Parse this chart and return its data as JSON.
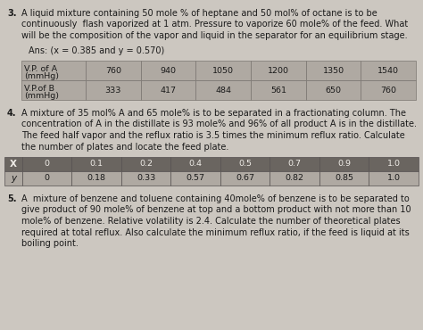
{
  "background_color": "#ccc7c0",
  "text_color": "#1a1a1a",
  "q3_num": "3.",
  "q3_lines": [
    "A liquid mixture containing 50 mole % of heptane and 50 mol% of octane is to be",
    "continuously  flash vaporized at 1 atm. Pressure to vaporize 60 mole% of the feed. What",
    "will be the composition of the vapor and liquid in the separator for an equilibrium stage."
  ],
  "q3_ans": "Ans: (x = 0.385 and y = 0.570)",
  "t1_col1_lines": [
    "V.P. of A",
    "(mmHg)"
  ],
  "t1_col2_lines": [
    "V.P.of B",
    "(mmHg)"
  ],
  "t1_row1": [
    "760",
    "940",
    "1050",
    "1200",
    "1350",
    "1540"
  ],
  "t1_row2": [
    "333",
    "417",
    "484",
    "561",
    "650",
    "760"
  ],
  "t1_bg": "#afa9a2",
  "t1_edge": "#7a7570",
  "q4_num": "4.",
  "q4_lines": [
    "A mixture of 35 mol% A and 65 mole% is to be separated in a fractionating column. The",
    "concentration of A in the distillate is 93 mole% and 96% of all product A is in the distillate.",
    "The feed half vapor and the reflux ratio is 3.5 times the minimum reflux ratio. Calculate",
    "the number of plates and locate the feed plate."
  ],
  "t2_x_hdr": "X",
  "t2_y_hdr": "y",
  "t2_x": [
    "0",
    "0.1",
    "0.2",
    "0.4",
    "0.5",
    "0.7",
    "0.9",
    "1.0"
  ],
  "t2_y": [
    "0",
    "0.18",
    "0.33",
    "0.57",
    "0.67",
    "0.82",
    "0.85",
    "1.0"
  ],
  "t2_hdr_bg": "#6a6560",
  "t2_hdr_fg": "#f0ede8",
  "t2_row_bg": "#afa9a2",
  "t2_edge": "#555050",
  "q5_num": "5.",
  "q5_lines": [
    "A  mixture of benzene and toluene containing 40mole% of benzene is to be separated to",
    "give product of 90 mole% of benzene at top and a bottom product with not more than 10",
    "mole% of benzene. Relative volatility is 2.4. Calculate the number of theoretical plates",
    "required at total reflux. Also calculate the minimum reflux ratio, if the feed is liquid at its",
    "boiling point."
  ]
}
